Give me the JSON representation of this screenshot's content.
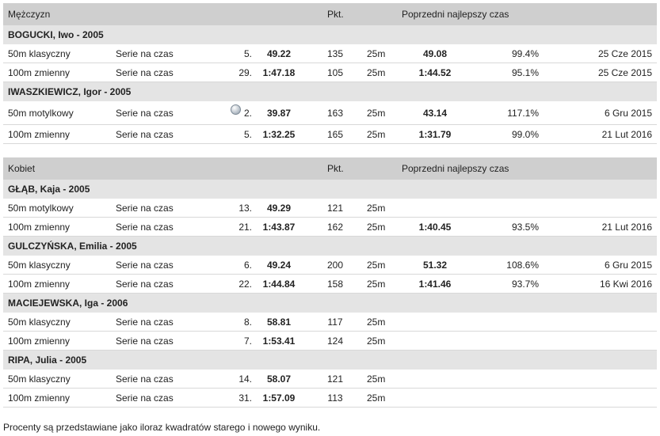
{
  "men": {
    "header": {
      "title": "Mężczyzn",
      "pkt": "Pkt.",
      "prev": "Poprzedni najlepszy czas"
    },
    "athletes": [
      {
        "name": "BOGUCKI, Iwo - 2005",
        "results": [
          {
            "event": "50m klasyczny",
            "round": "Serie na czas",
            "medal": false,
            "place": "5.",
            "time": "49.22",
            "points": "135",
            "pool": "25m",
            "prev_time": "49.08",
            "percent": "99.4%",
            "date": "25 Cze 2015"
          },
          {
            "event": "100m zmienny",
            "round": "Serie na czas",
            "medal": false,
            "place": "29.",
            "time": "1:47.18",
            "points": "105",
            "pool": "25m",
            "prev_time": "1:44.52",
            "percent": "95.1%",
            "date": "25 Cze 2015"
          }
        ]
      },
      {
        "name": "IWASZKIEWICZ, Igor - 2005",
        "results": [
          {
            "event": "50m motylkowy",
            "round": "Serie na czas",
            "medal": true,
            "medal_icon": "silver-medal-icon",
            "place": "2.",
            "time": "39.87",
            "points": "163",
            "pool": "25m",
            "prev_time": "43.14",
            "percent": "117.1%",
            "date": "6 Gru 2015"
          },
          {
            "event": "100m zmienny",
            "round": "Serie na czas",
            "medal": false,
            "place": "5.",
            "time": "1:32.25",
            "points": "165",
            "pool": "25m",
            "prev_time": "1:31.79",
            "percent": "99.0%",
            "date": "21 Lut 2016"
          }
        ]
      }
    ]
  },
  "women": {
    "header": {
      "title": "Kobiet",
      "pkt": "Pkt.",
      "prev": "Poprzedni najlepszy czas"
    },
    "athletes": [
      {
        "name": "GŁĄB, Kaja - 2005",
        "results": [
          {
            "event": "50m motylkowy",
            "round": "Serie na czas",
            "medal": false,
            "place": "13.",
            "time": "49.29",
            "points": "121",
            "pool": "25m",
            "prev_time": "",
            "percent": "",
            "date": ""
          },
          {
            "event": "100m zmienny",
            "round": "Serie na czas",
            "medal": false,
            "place": "21.",
            "time": "1:43.87",
            "points": "162",
            "pool": "25m",
            "prev_time": "1:40.45",
            "percent": "93.5%",
            "date": "21 Lut 2016"
          }
        ]
      },
      {
        "name": "GULCZYŃSKA, Emilia - 2005",
        "results": [
          {
            "event": "50m klasyczny",
            "round": "Serie na czas",
            "medal": false,
            "place": "6.",
            "time": "49.24",
            "points": "200",
            "pool": "25m",
            "prev_time": "51.32",
            "percent": "108.6%",
            "date": "6 Gru 2015"
          },
          {
            "event": "100m zmienny",
            "round": "Serie na czas",
            "medal": false,
            "place": "22.",
            "time": "1:44.84",
            "points": "158",
            "pool": "25m",
            "prev_time": "1:41.46",
            "percent": "93.7%",
            "date": "16 Kwi 2016"
          }
        ]
      },
      {
        "name": "MACIEJEWSKA, Iga - 2006",
        "results": [
          {
            "event": "50m klasyczny",
            "round": "Serie na czas",
            "medal": false,
            "place": "8.",
            "time": "58.81",
            "points": "117",
            "pool": "25m",
            "prev_time": "",
            "percent": "",
            "date": ""
          },
          {
            "event": "100m zmienny",
            "round": "Serie na czas",
            "medal": false,
            "place": "7.",
            "time": "1:53.41",
            "points": "124",
            "pool": "25m",
            "prev_time": "",
            "percent": "",
            "date": ""
          }
        ]
      },
      {
        "name": "RIPA, Julia - 2005",
        "results": [
          {
            "event": "50m klasyczny",
            "round": "Serie na czas",
            "medal": false,
            "place": "14.",
            "time": "58.07",
            "points": "121",
            "pool": "25m",
            "prev_time": "",
            "percent": "",
            "date": ""
          },
          {
            "event": "100m zmienny",
            "round": "Serie na czas",
            "medal": false,
            "place": "31.",
            "time": "1:57.09",
            "points": "113",
            "pool": "25m",
            "prev_time": "",
            "percent": "",
            "date": ""
          }
        ]
      }
    ]
  },
  "footnote": "Procenty są przedstawiane jako iloraz kwadratów starego i nowego wyniku."
}
